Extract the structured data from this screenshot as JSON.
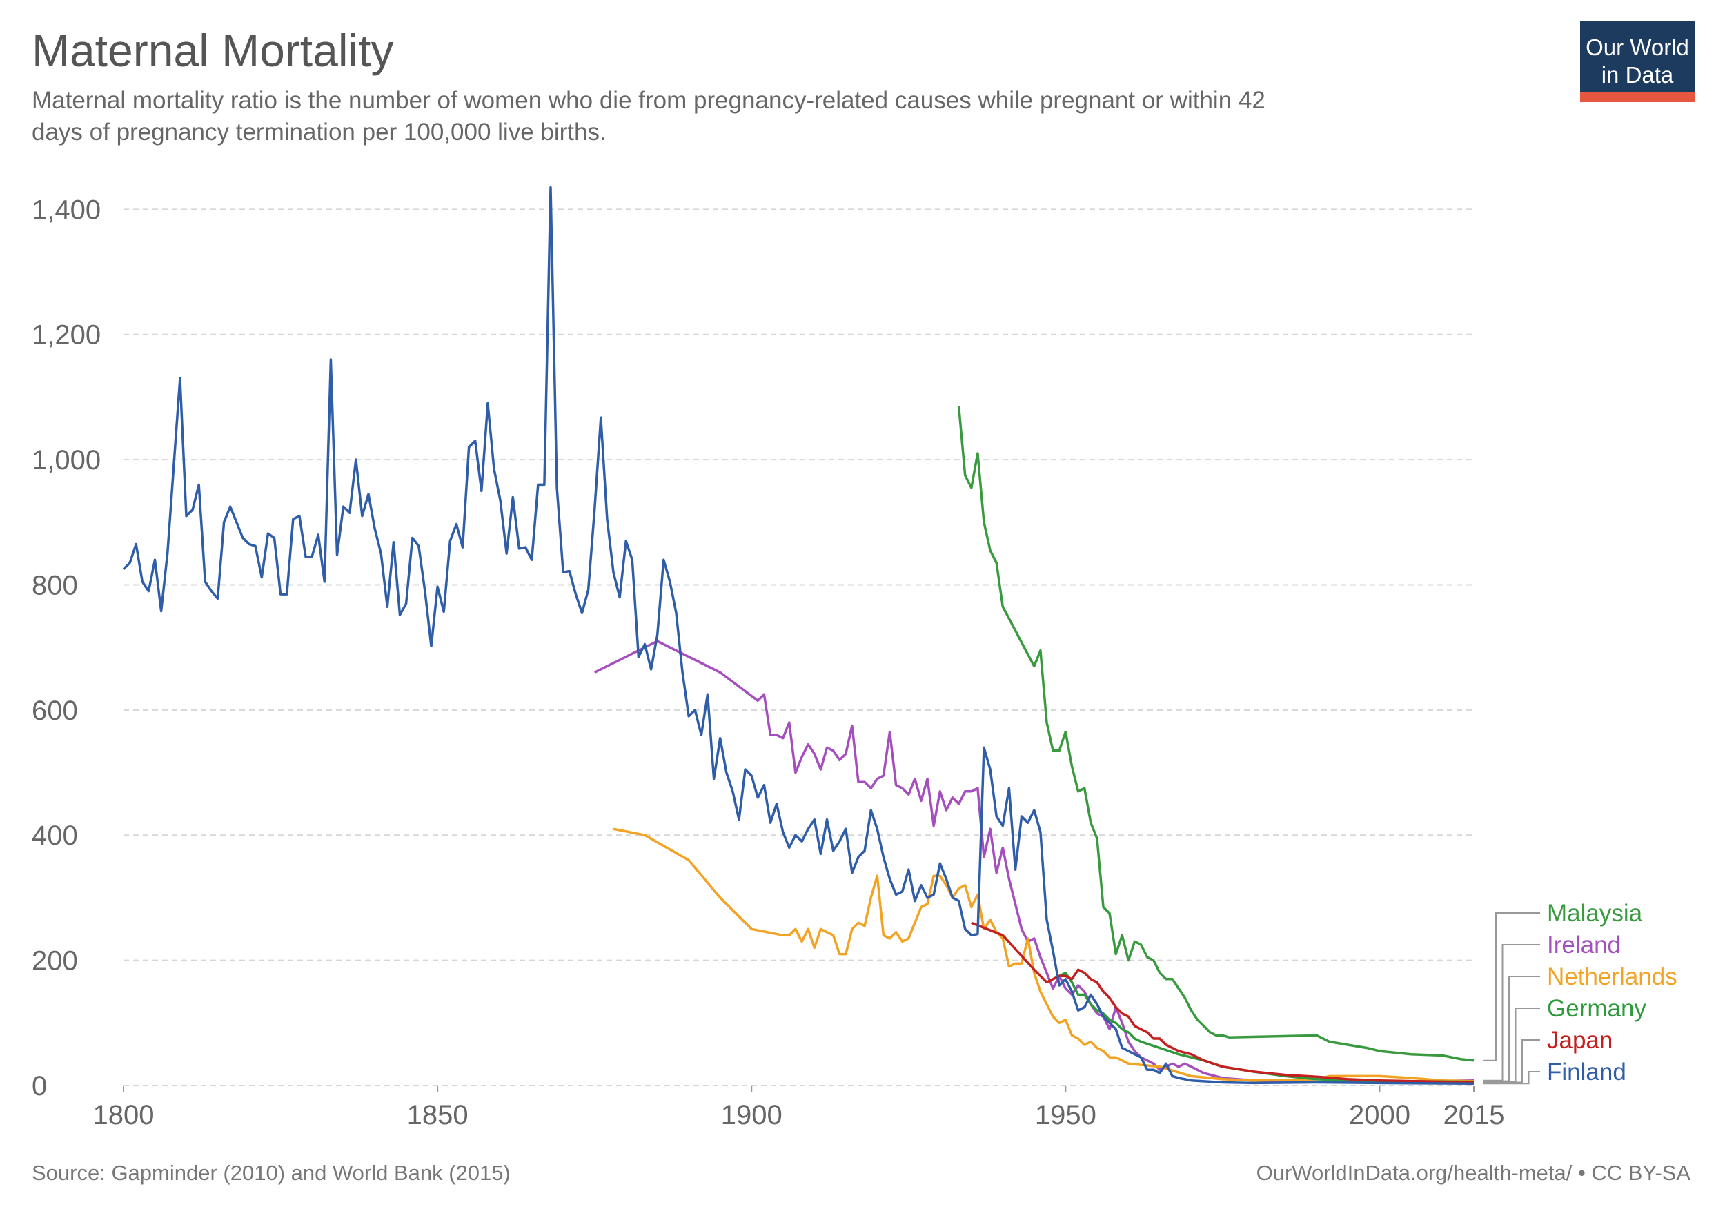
{
  "chart_data": {
    "type": "line",
    "title": "Maternal Mortality",
    "subtitle": [
      "Maternal mortality ratio is the number of women who die from pregnancy-related causes while pregnant or within 42",
      "days of pregnancy termination per 100,000 live births."
    ],
    "logo": [
      "Our World",
      "in Data"
    ],
    "source": "Source: Gapminder (2010) and World Bank (2015)",
    "license": "OurWorldInData.org/health-meta/ • CC BY-SA",
    "xlim": [
      1800,
      2015
    ],
    "xticks": [
      1800,
      1850,
      1900,
      1950,
      2000,
      2015
    ],
    "ylim": [
      0,
      1450
    ],
    "yticks": [
      0,
      200,
      400,
      600,
      800,
      {
        "value": 1000,
        "label": "1,000"
      },
      {
        "value": 1200,
        "label": "1,200"
      },
      {
        "value": 1400,
        "label": "1,400"
      }
    ],
    "grid": true,
    "legend": "right",
    "series": [
      {
        "name": "Malaysia",
        "color": "#3a9a3f",
        "x": [
          1933,
          1934,
          1935,
          1936,
          1937,
          1938,
          1939,
          1940,
          1945,
          1946,
          1947,
          1948,
          1949,
          1950,
          1951,
          1952,
          1953,
          1954,
          1955,
          1956,
          1957,
          1958,
          1959,
          1960,
          1961,
          1962,
          1963,
          1964,
          1965,
          1966,
          1967,
          1968,
          1969,
          1970,
          1971,
          1972,
          1973,
          1974,
          1975,
          1976,
          1990,
          1992,
          1995,
          1998,
          2000,
          2005,
          2010,
          2013,
          2015
        ],
        "values": [
          1085,
          975,
          955,
          1010,
          900,
          855,
          835,
          765,
          670,
          695,
          580,
          535,
          535,
          565,
          510,
          470,
          475,
          420,
          395,
          285,
          275,
          210,
          240,
          200,
          230,
          225,
          205,
          200,
          180,
          170,
          170,
          155,
          140,
          120,
          105,
          95,
          85,
          80,
          80,
          77,
          80,
          70,
          65,
          60,
          55,
          50,
          48,
          42,
          40
        ]
      },
      {
        "name": "Ireland",
        "color": "#a44fbd",
        "x": [
          1875,
          1885,
          1895,
          1901,
          1902,
          1903,
          1904,
          1905,
          1906,
          1907,
          1908,
          1909,
          1910,
          1911,
          1912,
          1913,
          1914,
          1915,
          1916,
          1917,
          1918,
          1919,
          1920,
          1921,
          1922,
          1923,
          1924,
          1925,
          1926,
          1927,
          1928,
          1929,
          1930,
          1931,
          1932,
          1933,
          1934,
          1935,
          1936,
          1937,
          1938,
          1939,
          1940,
          1941,
          1942,
          1943,
          1944,
          1945,
          1946,
          1947,
          1948,
          1949,
          1950,
          1951,
          1952,
          1953,
          1954,
          1955,
          1956,
          1957,
          1958,
          1959,
          1960,
          1961,
          1962,
          1963,
          1964,
          1965,
          1966,
          1967,
          1968,
          1969,
          1970,
          1972,
          1975,
          1980,
          1990,
          2000,
          2015
        ],
        "values": [
          660,
          710,
          660,
          615,
          625,
          560,
          560,
          555,
          580,
          500,
          525,
          545,
          530,
          505,
          540,
          535,
          520,
          530,
          575,
          485,
          485,
          475,
          490,
          495,
          565,
          480,
          475,
          465,
          490,
          455,
          490,
          415,
          470,
          440,
          460,
          450,
          470,
          470,
          475,
          365,
          410,
          340,
          380,
          330,
          290,
          250,
          230,
          235,
          205,
          180,
          155,
          175,
          155,
          145,
          160,
          150,
          130,
          115,
          110,
          90,
          125,
          100,
          70,
          55,
          45,
          40,
          35,
          25,
          30,
          35,
          30,
          35,
          30,
          20,
          12,
          8,
          6,
          6,
          8
        ]
      },
      {
        "name": "Netherlands",
        "color": "#f2a324",
        "x": [
          1878,
          1883,
          1890,
          1895,
          1900,
          1905,
          1906,
          1907,
          1908,
          1909,
          1910,
          1911,
          1912,
          1913,
          1914,
          1915,
          1916,
          1917,
          1918,
          1919,
          1920,
          1921,
          1922,
          1923,
          1924,
          1925,
          1926,
          1927,
          1928,
          1929,
          1930,
          1931,
          1932,
          1933,
          1934,
          1935,
          1936,
          1937,
          1938,
          1939,
          1940,
          1941,
          1942,
          1943,
          1944,
          1945,
          1946,
          1947,
          1948,
          1949,
          1950,
          1951,
          1952,
          1953,
          1954,
          1955,
          1956,
          1957,
          1958,
          1959,
          1960,
          1965,
          1970,
          1975,
          1980,
          1990,
          1992,
          2000,
          2005,
          2010,
          2015
        ],
        "values": [
          410,
          400,
          360,
          300,
          250,
          240,
          240,
          250,
          230,
          250,
          220,
          250,
          245,
          240,
          210,
          210,
          250,
          260,
          255,
          300,
          335,
          240,
          235,
          245,
          230,
          235,
          260,
          285,
          290,
          335,
          335,
          320,
          300,
          315,
          320,
          285,
          305,
          250,
          265,
          245,
          235,
          190,
          195,
          195,
          235,
          180,
          150,
          130,
          110,
          100,
          105,
          80,
          75,
          65,
          70,
          60,
          55,
          45,
          45,
          40,
          35,
          30,
          15,
          10,
          8,
          10,
          15,
          15,
          12,
          8,
          7
        ]
      },
      {
        "name": "Germany",
        "color": "#2e9a3c",
        "x": [
          1948,
          1950,
          1951,
          1952,
          1953,
          1954,
          1955,
          1956,
          1957,
          1958,
          1959,
          1960,
          1961,
          1962,
          1965,
          1968,
          1970,
          1972,
          1975,
          1980,
          1985,
          1990,
          2000,
          2015
        ],
        "values": [
          170,
          180,
          165,
          145,
          145,
          130,
          120,
          115,
          105,
          100,
          90,
          85,
          75,
          70,
          60,
          50,
          45,
          40,
          30,
          22,
          15,
          10,
          7,
          6
        ]
      },
      {
        "name": "Japan",
        "color": "#c4201f",
        "x": [
          1935,
          1940,
          1945,
          1947,
          1948,
          1949,
          1950,
          1951,
          1952,
          1953,
          1954,
          1955,
          1956,
          1957,
          1958,
          1959,
          1960,
          1961,
          1962,
          1963,
          1964,
          1965,
          1966,
          1967,
          1968,
          1970,
          1972,
          1975,
          1980,
          1985,
          1990,
          1995,
          2000,
          2015
        ],
        "values": [
          260,
          240,
          185,
          165,
          170,
          175,
          175,
          170,
          185,
          180,
          170,
          165,
          150,
          140,
          125,
          115,
          110,
          95,
          90,
          85,
          75,
          75,
          65,
          60,
          55,
          50,
          40,
          30,
          22,
          17,
          14,
          10,
          8,
          5
        ]
      },
      {
        "name": "Finland",
        "color": "#2f5da8",
        "x": [
          1800,
          1801,
          1802,
          1803,
          1804,
          1805,
          1806,
          1807,
          1808,
          1809,
          1810,
          1811,
          1812,
          1813,
          1814,
          1815,
          1816,
          1817,
          1818,
          1819,
          1820,
          1821,
          1822,
          1823,
          1824,
          1825,
          1826,
          1827,
          1828,
          1829,
          1830,
          1831,
          1832,
          1833,
          1834,
          1835,
          1836,
          1837,
          1838,
          1839,
          1840,
          1841,
          1842,
          1843,
          1844,
          1845,
          1846,
          1847,
          1848,
          1849,
          1850,
          1851,
          1852,
          1853,
          1854,
          1855,
          1856,
          1857,
          1858,
          1859,
          1860,
          1861,
          1862,
          1863,
          1864,
          1865,
          1866,
          1867,
          1868,
          1869,
          1870,
          1871,
          1872,
          1873,
          1874,
          1875,
          1876,
          1877,
          1878,
          1879,
          1880,
          1881,
          1882,
          1883,
          1884,
          1885,
          1886,
          1887,
          1888,
          1889,
          1890,
          1891,
          1892,
          1893,
          1894,
          1895,
          1896,
          1897,
          1898,
          1899,
          1900,
          1901,
          1902,
          1903,
          1904,
          1905,
          1906,
          1907,
          1908,
          1909,
          1910,
          1911,
          1912,
          1913,
          1914,
          1915,
          1916,
          1917,
          1918,
          1919,
          1920,
          1921,
          1922,
          1923,
          1924,
          1925,
          1926,
          1927,
          1928,
          1929,
          1930,
          1931,
          1932,
          1933,
          1934,
          1935,
          1936,
          1937,
          1938,
          1939,
          1940,
          1941,
          1942,
          1943,
          1944,
          1945,
          1946,
          1947,
          1948,
          1949,
          1950,
          1951,
          1952,
          1953,
          1954,
          1955,
          1956,
          1957,
          1958,
          1959,
          1960,
          1961,
          1962,
          1963,
          1964,
          1965,
          1966,
          1967,
          1968,
          1969,
          1970,
          1975,
          1980,
          1990,
          2000,
          2015
        ],
        "values": [
          825,
          835,
          865,
          805,
          790,
          840,
          758,
          850,
          990,
          1130,
          910,
          920,
          960,
          805,
          790,
          778,
          900,
          925,
          900,
          875,
          865,
          862,
          812,
          882,
          875,
          785,
          785,
          905,
          910,
          845,
          845,
          880,
          805,
          1160,
          848,
          925,
          915,
          1000,
          910,
          945,
          890,
          850,
          765,
          868,
          752,
          770,
          875,
          862,
          790,
          702,
          797,
          757,
          870,
          897,
          860,
          1020,
          1030,
          950,
          1090,
          985,
          935,
          850,
          940,
          858,
          860,
          840,
          960,
          960,
          1435,
          955,
          820,
          822,
          785,
          755,
          792,
          920,
          1067,
          905,
          820,
          780,
          870,
          840,
          685,
          705,
          665,
          720,
          840,
          805,
          755,
          660,
          590,
          600,
          560,
          625,
          490,
          555,
          500,
          470,
          425,
          505,
          495,
          460,
          480,
          420,
          450,
          405,
          380,
          400,
          390,
          410,
          425,
          370,
          425,
          375,
          390,
          410,
          340,
          365,
          375,
          440,
          410,
          365,
          330,
          305,
          310,
          345,
          295,
          320,
          300,
          305,
          355,
          330,
          300,
          295,
          250,
          240,
          242,
          540,
          505,
          430,
          415,
          475,
          345,
          430,
          420,
          440,
          405,
          265,
          215,
          160,
          170,
          150,
          120,
          125,
          145,
          130,
          110,
          100,
          90,
          60,
          55,
          50,
          45,
          25,
          25,
          20,
          35,
          15,
          12,
          10,
          8,
          5,
          4,
          5,
          4,
          3
        ]
      }
    ]
  }
}
